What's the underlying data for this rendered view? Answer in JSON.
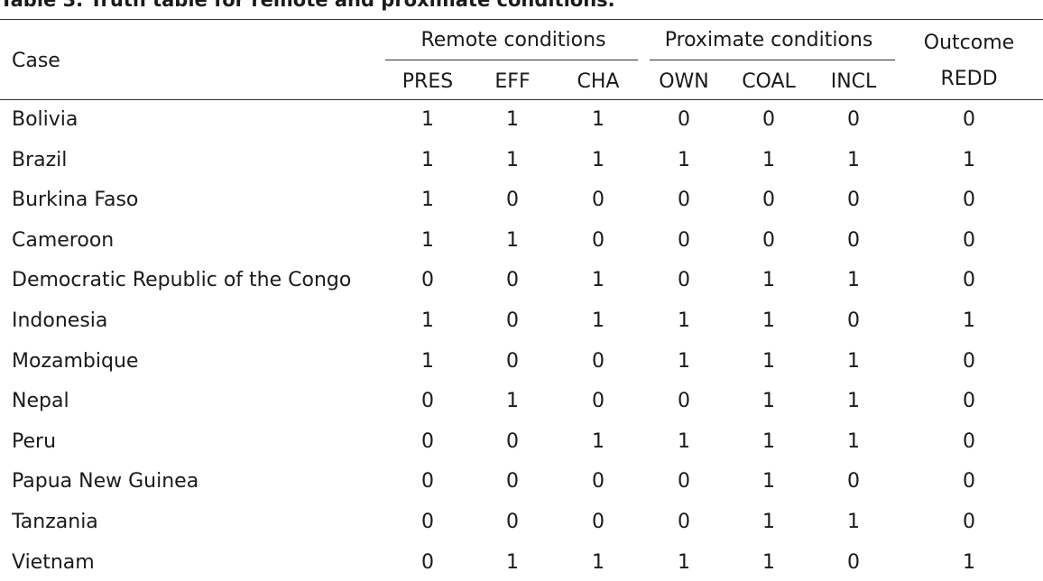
{
  "caption": "Table 3. Truth table for remote and proximate conditions.",
  "headers": {
    "case": "Case",
    "remote_group": "Remote conditions",
    "proximate_group": "Proximate conditions",
    "outcome_line1": "Outcome",
    "outcome_line2": "REDD",
    "columns": [
      "PRES",
      "EFF",
      "CHA",
      "OWN",
      "COAL",
      "INCL"
    ]
  },
  "rows": [
    {
      "case": "Bolivia",
      "values": [
        "1",
        "1",
        "1",
        "0",
        "0",
        "0",
        "0"
      ]
    },
    {
      "case": "Brazil",
      "values": [
        "1",
        "1",
        "1",
        "1",
        "1",
        "1",
        "1"
      ]
    },
    {
      "case": "Burkina Faso",
      "values": [
        "1",
        "0",
        "0",
        "0",
        "0",
        "0",
        "0"
      ]
    },
    {
      "case": "Cameroon",
      "values": [
        "1",
        "1",
        "0",
        "0",
        "0",
        "0",
        "0"
      ]
    },
    {
      "case": "Democratic Republic of the Congo",
      "values": [
        "0",
        "0",
        "1",
        "0",
        "1",
        "1",
        "0"
      ]
    },
    {
      "case": "Indonesia",
      "values": [
        "1",
        "0",
        "1",
        "1",
        "1",
        "0",
        "1"
      ]
    },
    {
      "case": "Mozambique",
      "values": [
        "1",
        "0",
        "0",
        "1",
        "1",
        "1",
        "0"
      ]
    },
    {
      "case": "Nepal",
      "values": [
        "0",
        "1",
        "0",
        "0",
        "1",
        "1",
        "0"
      ]
    },
    {
      "case": "Peru",
      "values": [
        "0",
        "0",
        "1",
        "1",
        "1",
        "1",
        "0"
      ]
    },
    {
      "case": "Papua New Guinea",
      "values": [
        "0",
        "0",
        "0",
        "0",
        "1",
        "0",
        "0"
      ]
    },
    {
      "case": "Tanzania",
      "values": [
        "0",
        "0",
        "0",
        "0",
        "1",
        "1",
        "0"
      ]
    },
    {
      "case": "Vietnam",
      "values": [
        "0",
        "1",
        "1",
        "1",
        "1",
        "0",
        "1"
      ]
    }
  ]
}
